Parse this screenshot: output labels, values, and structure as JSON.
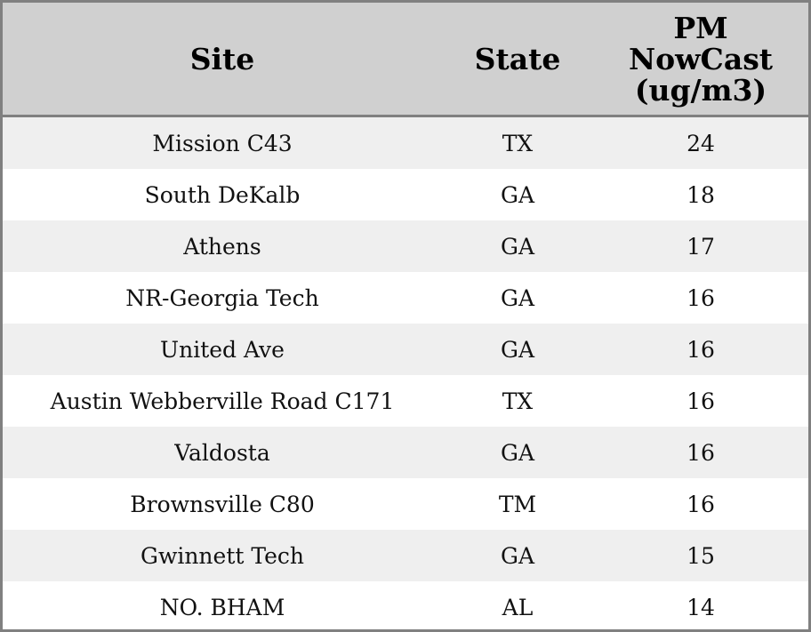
{
  "table": {
    "headers": {
      "site": "Site",
      "state": "State",
      "pm_line1": "PM",
      "pm_line2": "NowCast",
      "pm_line3": "(ug/m3)"
    },
    "rows": [
      {
        "site": "Mission C43",
        "state": "TX",
        "pm": "24"
      },
      {
        "site": "South DeKalb",
        "state": "GA",
        "pm": "18"
      },
      {
        "site": "Athens",
        "state": "GA",
        "pm": "17"
      },
      {
        "site": "NR-Georgia Tech",
        "state": "GA",
        "pm": "16"
      },
      {
        "site": "United Ave",
        "state": "GA",
        "pm": "16"
      },
      {
        "site": "Austin Webberville Road C171",
        "state": "TX",
        "pm": "16"
      },
      {
        "site": "Valdosta",
        "state": "GA",
        "pm": "16"
      },
      {
        "site": "Brownsville C80",
        "state": "TM",
        "pm": "16"
      },
      {
        "site": "Gwinnett Tech",
        "state": "GA",
        "pm": "15"
      },
      {
        "site": "NO. BHAM",
        "state": "AL",
        "pm": "14"
      }
    ]
  },
  "colors": {
    "header_bg": "#d0d0d0",
    "row_alt_bg": "#efefef",
    "row_bg": "#ffffff",
    "border": "#808080"
  }
}
